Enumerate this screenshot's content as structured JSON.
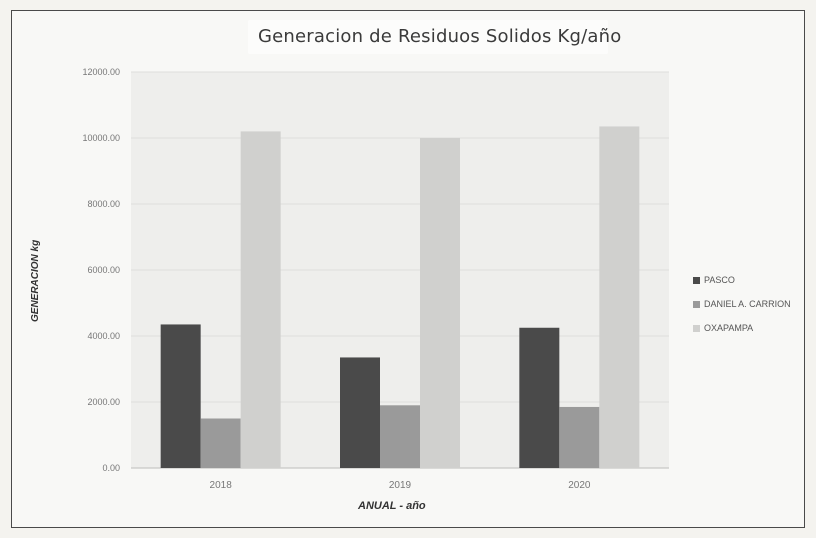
{
  "chart_data": {
    "type": "bar",
    "title": "Generacion de Residuos Solidos Kg/año",
    "xlabel": "ANUAL - año",
    "ylabel": "GENERACION kg",
    "categories": [
      "2018",
      "2019",
      "2020"
    ],
    "ylim": [
      0,
      12000
    ],
    "yticks": [
      "0.00",
      "2000.00",
      "4000.00",
      "6000.00",
      "8000.00",
      "10000.00",
      "12000.00"
    ],
    "grid": true,
    "legend_position": "right",
    "series": [
      {
        "name": "PASCO",
        "color": "#4a4a4a",
        "values": [
          4350,
          3350,
          4250
        ]
      },
      {
        "name": "DANIEL A. CARRION",
        "color": "#9a9a9a",
        "values": [
          1500,
          1900,
          1850
        ]
      },
      {
        "name": "OXAPAMPA",
        "color": "#d0d0ce",
        "values": [
          10200,
          10000,
          10350
        ]
      }
    ]
  }
}
